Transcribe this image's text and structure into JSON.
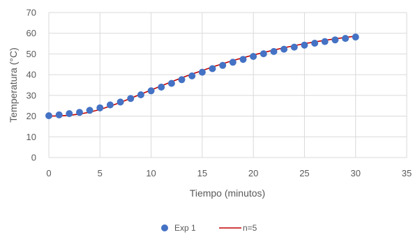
{
  "chart_data": {
    "type": "scatter",
    "xlabel": "Tiempo (minutos)",
    "ylabel": "Temperatura (°C)",
    "xlim": [
      0,
      35
    ],
    "ylim": [
      0,
      70
    ],
    "x_ticks": [
      "0",
      "5",
      "10",
      "15",
      "20",
      "25",
      "30",
      "35"
    ],
    "y_ticks": [
      "0",
      "10",
      "20",
      "30",
      "40",
      "50",
      "60",
      "70"
    ],
    "grid": "on",
    "legend_position": "bottom",
    "series": [
      {
        "name": "Exp 1",
        "kind": "markers",
        "color": "#4472c4",
        "x": [
          0,
          1,
          2,
          3,
          4,
          5,
          6,
          7,
          8,
          9,
          10,
          11,
          12,
          13,
          14,
          15,
          16,
          17,
          18,
          19,
          20,
          21,
          22,
          23,
          24,
          25,
          26,
          27,
          28,
          29,
          30
        ],
        "y": [
          20.2,
          20.6,
          21.2,
          21.8,
          22.8,
          24.0,
          25.4,
          26.8,
          28.5,
          30.3,
          32.2,
          34.0,
          35.8,
          37.6,
          39.4,
          41.2,
          42.9,
          44.5,
          46.0,
          47.4,
          48.8,
          50.1,
          51.2,
          52.3,
          53.3,
          54.3,
          55.2,
          56.0,
          56.8,
          57.5,
          58.2
        ]
      },
      {
        "name": "n=5",
        "kind": "line",
        "color": "#c00000",
        "x": [
          0,
          1,
          2,
          3,
          4,
          5,
          6,
          7,
          8,
          9,
          10,
          11,
          12,
          13,
          14,
          15,
          16,
          17,
          18,
          19,
          20,
          21,
          22,
          23,
          24,
          25,
          26,
          27,
          28,
          29,
          30
        ],
        "y": [
          20.0,
          20.1,
          20.4,
          21.0,
          21.9,
          23.2,
          24.8,
          26.6,
          28.6,
          30.6,
          32.6,
          34.6,
          36.6,
          38.5,
          40.3,
          42.0,
          43.7,
          45.3,
          46.8,
          48.2,
          49.5,
          50.7,
          51.9,
          53.0,
          54.0,
          55.0,
          55.8,
          56.6,
          57.3,
          58.0,
          58.6
        ]
      }
    ]
  }
}
